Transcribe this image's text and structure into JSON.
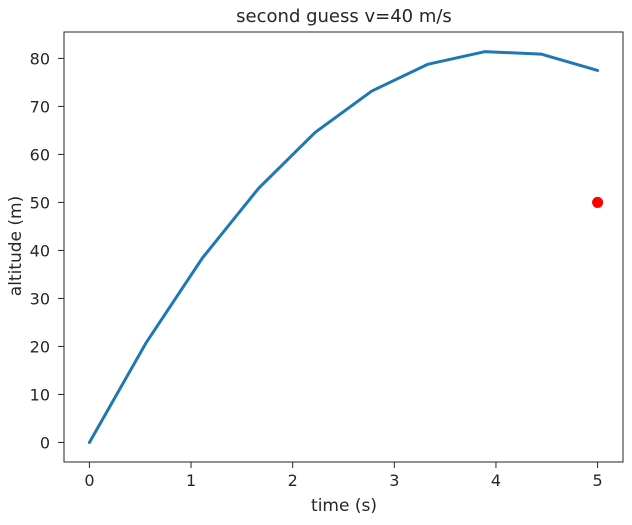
{
  "chart_data": {
    "type": "line",
    "title": "second guess v=40 m/s",
    "xlabel": "time (s)",
    "ylabel": "altitude (m)",
    "xlim": [
      -0.25,
      5.25
    ],
    "ylim": [
      -4.07,
      85.5
    ],
    "xticks": [
      0,
      1,
      2,
      3,
      4,
      5
    ],
    "yticks": [
      0,
      10,
      20,
      30,
      40,
      50,
      60,
      70,
      80
    ],
    "grid": false,
    "series": [
      {
        "color": "#1f77b4",
        "x": [
          0,
          0.556,
          1.111,
          1.667,
          2.222,
          2.778,
          3.333,
          3.889,
          4.444,
          5.0
        ],
        "y": [
          0,
          20.7,
          38.4,
          53.0,
          64.6,
          73.2,
          78.8,
          81.4,
          80.9,
          77.5
        ]
      }
    ],
    "points": [
      {
        "x": 5.0,
        "y": 50.0,
        "color": "#ff0000"
      }
    ]
  }
}
